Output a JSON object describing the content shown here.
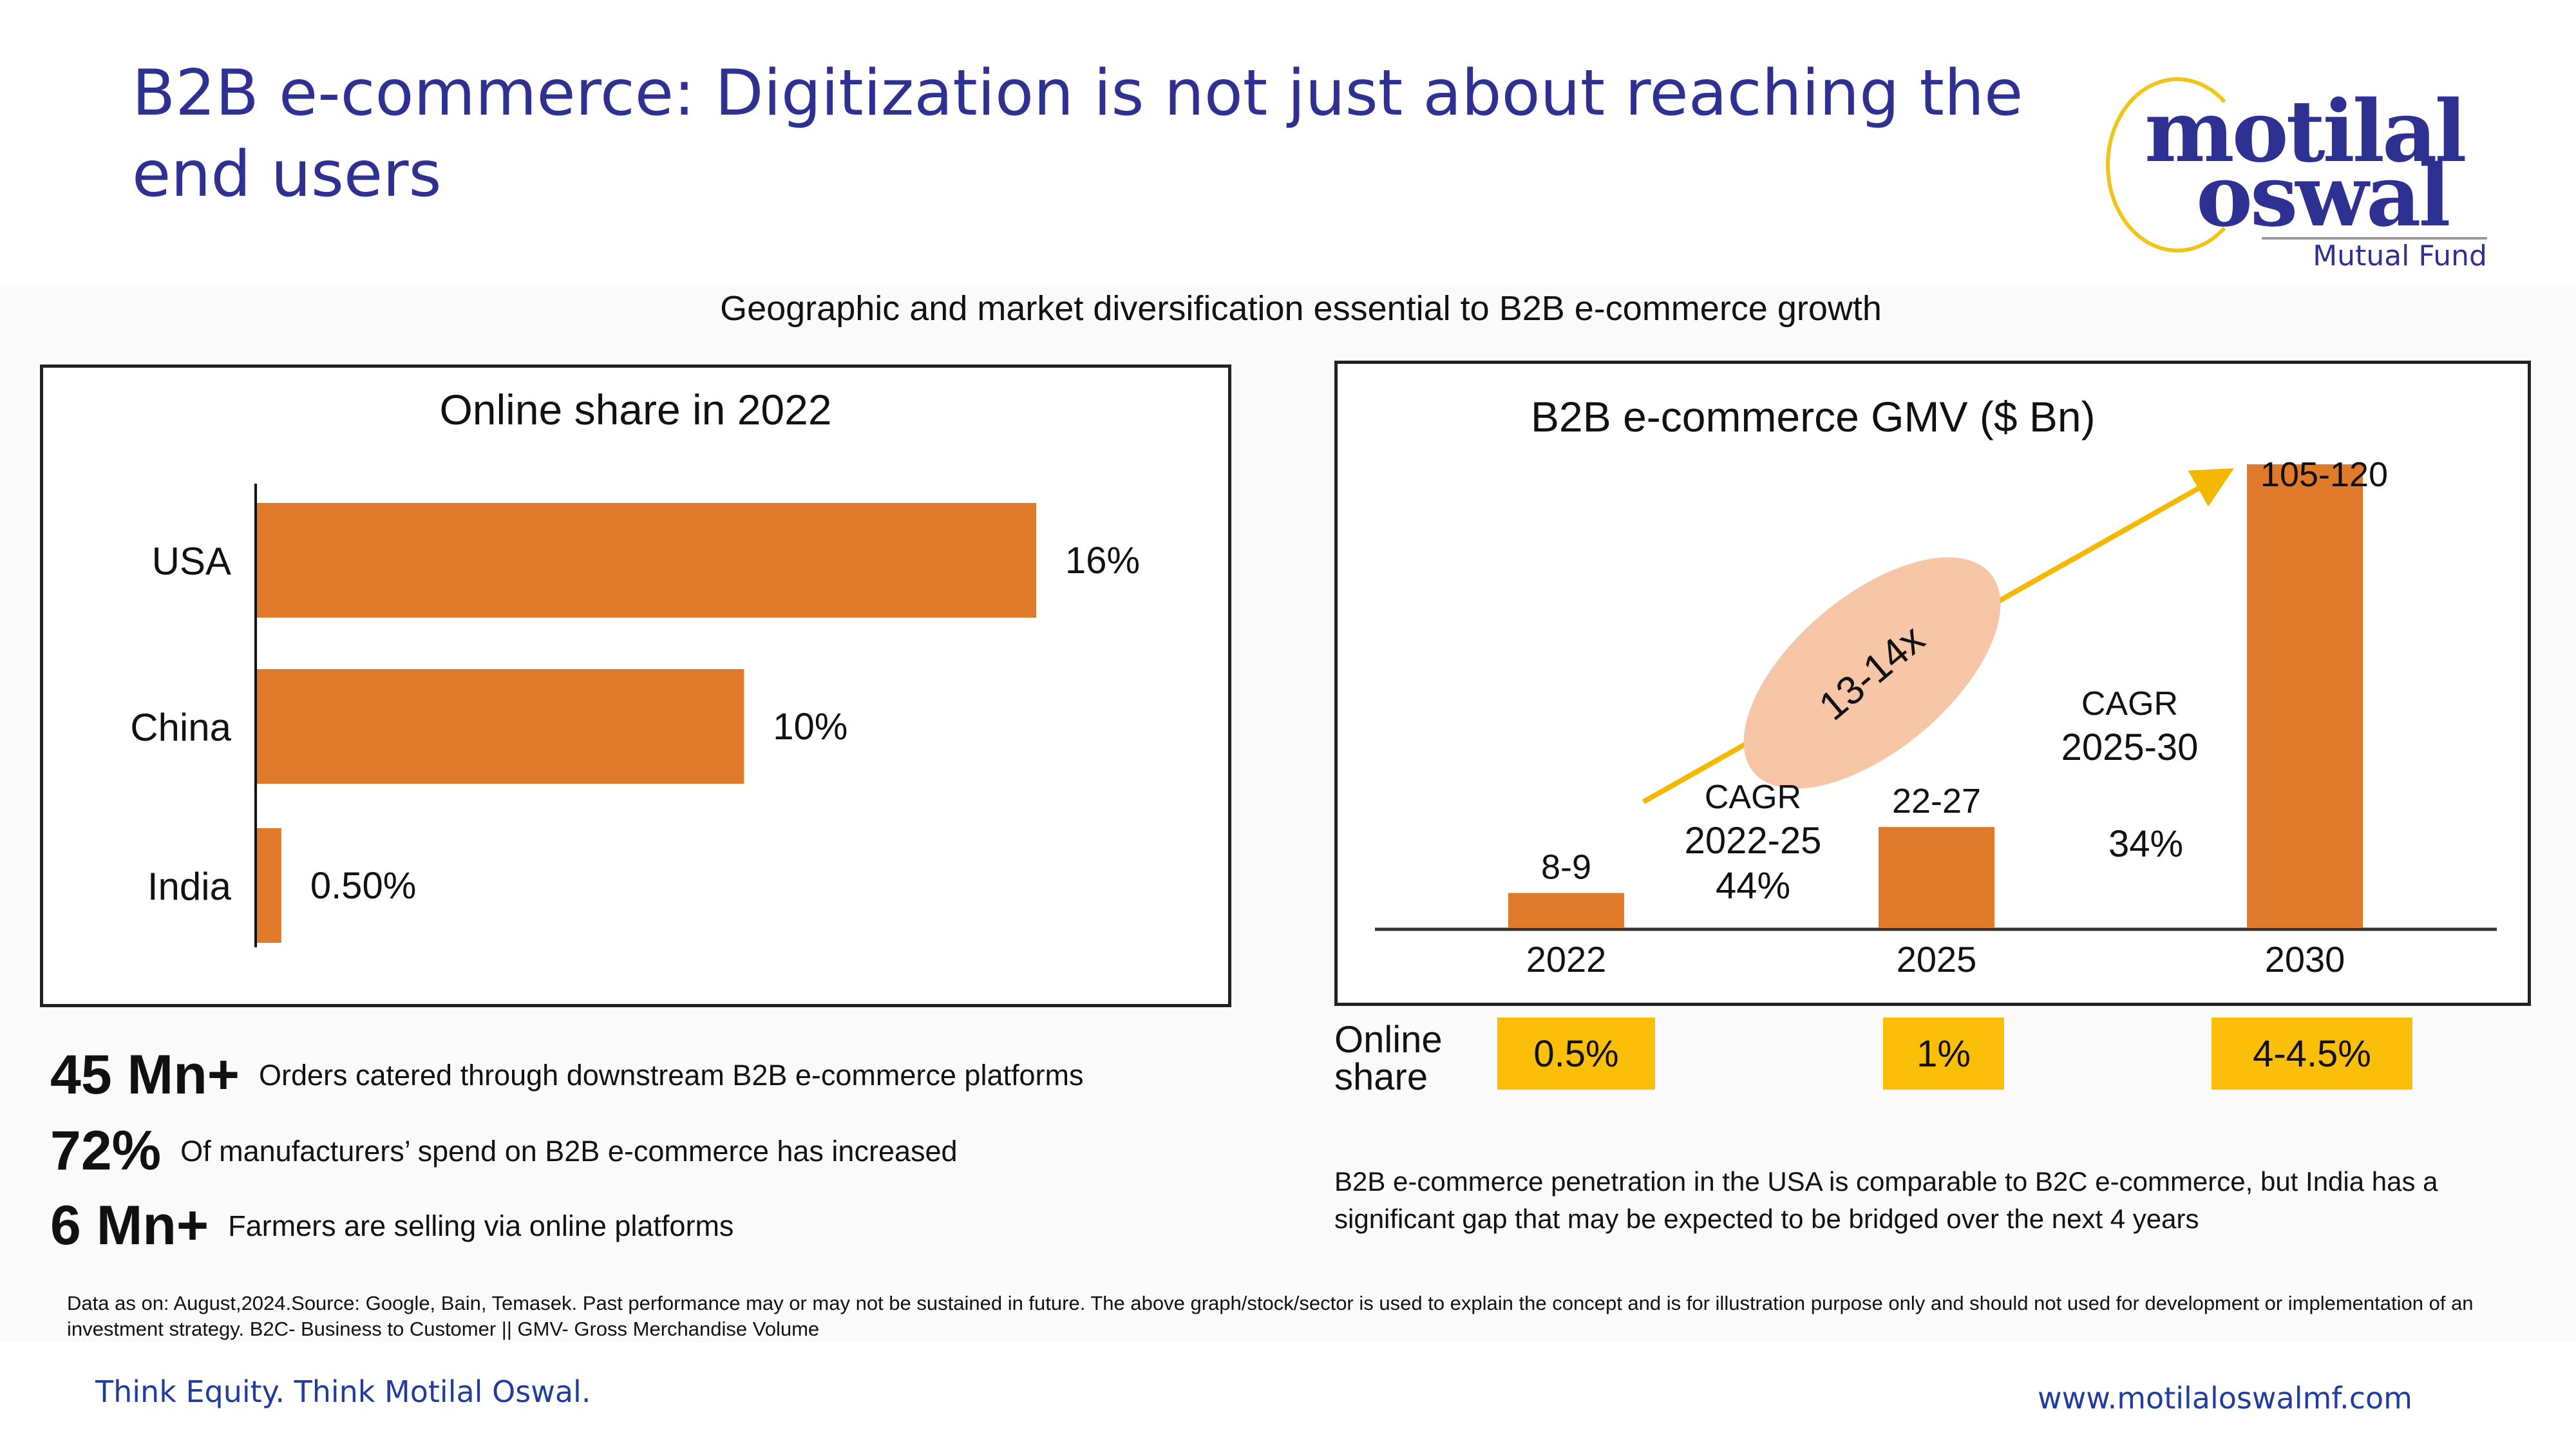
{
  "slide": {
    "title": "B2B e-commerce: Digitization is not just about reaching the end users",
    "subtitle": "Geographic and market diversification essential to B2B e-commerce growth"
  },
  "logo": {
    "line1": "motilal",
    "line2": "oswal",
    "tagline": "Mutual Fund"
  },
  "colors": {
    "title": "#2e3192",
    "bar": "#e07a2b",
    "arrow": "#f5b800",
    "ellipse": "#f7c6a6",
    "highlight_box": "#fbbf0a",
    "footer": "#1f3c9e"
  },
  "chart_data": [
    {
      "type": "bar",
      "orientation": "horizontal",
      "title": "Online share in 2022",
      "categories": [
        "USA",
        "China",
        "India"
      ],
      "values": [
        16,
        10,
        0.5
      ],
      "value_labels": [
        "16%",
        "10%",
        "0.50%"
      ],
      "xlabel": "",
      "ylabel": "",
      "xlim": [
        0,
        16
      ],
      "grid": false,
      "legend": "none"
    },
    {
      "type": "bar",
      "orientation": "vertical",
      "title": "B2B e-commerce GMV ($ Bn)",
      "categories": [
        "2022",
        "2025",
        "2030"
      ],
      "values_low": [
        8,
        22,
        105
      ],
      "values_high": [
        9,
        27,
        120
      ],
      "value_labels": [
        "8-9",
        "22-27",
        "105-120"
      ],
      "ylim": [
        0,
        125
      ],
      "grid": false,
      "legend": "none",
      "annotations": {
        "growth_multiple": "13-14x",
        "cagr_1": {
          "label": "CAGR",
          "period": "2022-25",
          "value": "44%"
        },
        "cagr_2": {
          "label": "CAGR",
          "period": "2025-30",
          "value": "34%"
        }
      }
    }
  ],
  "online_share": {
    "label": "Online share",
    "values": [
      "0.5%",
      "1%",
      "4-4.5%"
    ]
  },
  "stats": [
    {
      "value": "45 Mn+",
      "desc": "Orders catered through downstream B2B e-commerce platforms"
    },
    {
      "value": "72%",
      "desc": "Of manufacturers’ spend on B2B e-commerce has increased"
    },
    {
      "value": "6 Mn+",
      "desc": "Farmers are selling via online platforms"
    }
  ],
  "note": "B2B e-commerce penetration in the USA is comparable to B2C e-commerce, but India has a significant gap that may be expected to be bridged over the next 4 years",
  "disclaimer": "Data as on: August,2024.Source: Google, Bain, Temasek. Past performance may or may not be sustained in future. The above graph/stock/sector is used to explain the concept and is for illustration purpose only and should not used for development or implementation of an investment strategy. B2C- Business to Customer || GMV- Gross Merchandise Volume",
  "footer": {
    "tagline": "Think Equity. Think Motilal Oswal.",
    "website": "www.motilaloswalmf.com"
  }
}
